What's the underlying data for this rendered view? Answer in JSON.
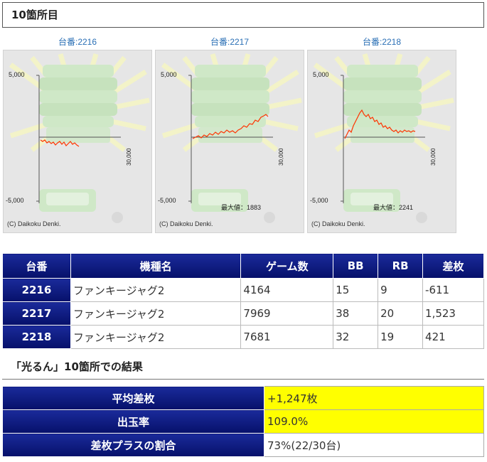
{
  "section_title": "10箇所目",
  "graphs": [
    {
      "caption": "台番:2216",
      "y_top": "5,000",
      "y_bottom": "-5,000",
      "x_end": "30,000",
      "copyright": "(C) Daikoku Denki.",
      "max_text": "",
      "color": "#ff3300"
    },
    {
      "caption": "台番:2217",
      "y_top": "5,000",
      "y_bottom": "-5,000",
      "x_end": "30,000",
      "copyright": "(C) Daikoku Denki.",
      "max_text": "最大値：1883",
      "color": "#ff3300"
    },
    {
      "caption": "台番:2218",
      "y_top": "5,000",
      "y_bottom": "-5,000",
      "x_end": "30,000",
      "copyright": "(C) Daikoku Denki.",
      "max_text": "最大値：2241",
      "color": "#ff3300"
    }
  ],
  "table": {
    "headers": [
      "台番",
      "機種名",
      "ゲーム数",
      "BB",
      "RB",
      "差枚"
    ],
    "rows": [
      [
        "2216",
        "ファンキージャグ2",
        "4164",
        "15",
        "9",
        "-611"
      ],
      [
        "2217",
        "ファンキージャグ2",
        "7969",
        "38",
        "20",
        "1,523"
      ],
      [
        "2218",
        "ファンキージャグ2",
        "7681",
        "32",
        "19",
        "421"
      ]
    ]
  },
  "result_title": "「光るん」10箇所での結果",
  "results": [
    {
      "label": "平均差枚",
      "value": "+1,247枚"
    },
    {
      "label": "出玉率",
      "value": "109.0%"
    },
    {
      "label": "差枚プラスの割合",
      "value": "73%(22/30台)"
    }
  ]
}
